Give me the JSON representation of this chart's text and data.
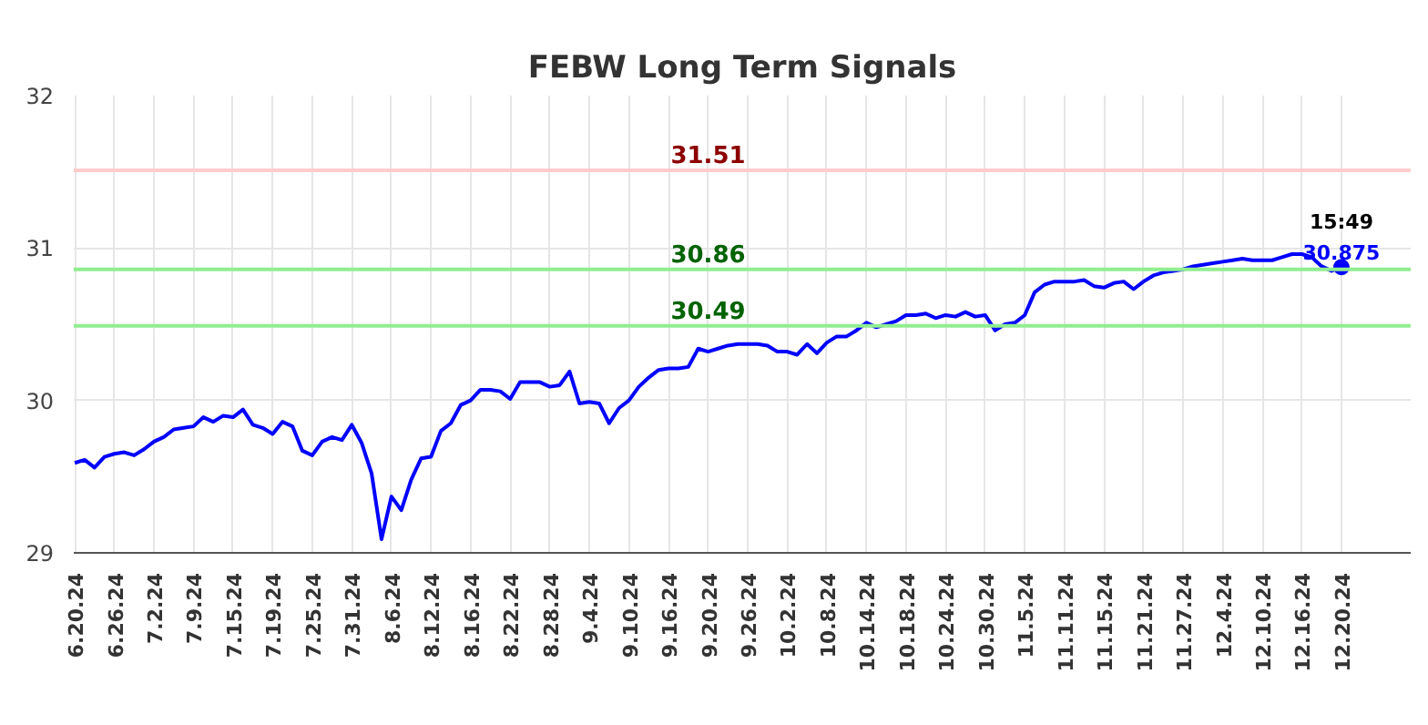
{
  "chart_data": {
    "type": "line",
    "title": "FEBW Long Term Signals",
    "categories": [
      "6.20.24",
      null,
      null,
      null,
      "6.26.24",
      null,
      null,
      null,
      "7.2.24",
      null,
      null,
      null,
      "7.9.24",
      null,
      null,
      null,
      "7.15.24",
      null,
      null,
      null,
      "7.19.24",
      null,
      null,
      null,
      "7.25.24",
      null,
      null,
      null,
      "7.31.24",
      null,
      null,
      null,
      "8.6.24",
      null,
      null,
      null,
      "8.12.24",
      null,
      null,
      null,
      "8.16.24",
      null,
      null,
      null,
      "8.22.24",
      null,
      null,
      null,
      "8.28.24",
      null,
      null,
      null,
      "9.4.24",
      null,
      null,
      null,
      "9.10.24",
      null,
      null,
      null,
      "9.16.24",
      null,
      null,
      null,
      "9.20.24",
      null,
      null,
      null,
      "9.26.24",
      null,
      null,
      null,
      "10.2.24",
      null,
      null,
      null,
      "10.8.24",
      null,
      null,
      null,
      "10.14.24",
      null,
      null,
      null,
      "10.18.24",
      null,
      null,
      null,
      "10.24.24",
      null,
      null,
      null,
      "10.30.24",
      null,
      null,
      null,
      "11.5.24",
      null,
      null,
      null,
      "11.11.24",
      null,
      null,
      null,
      "11.15.24",
      null,
      null,
      null,
      "11.21.24",
      null,
      null,
      null,
      "11.27.24",
      null,
      null,
      null,
      "12.4.24",
      null,
      null,
      null,
      "12.10.24",
      null,
      null,
      null,
      "12.16.24",
      null,
      null,
      null,
      "12.20.24"
    ],
    "series": [
      {
        "color": "#0000ff",
        "values": [
          29.59,
          29.61,
          29.56,
          29.63,
          29.65,
          29.66,
          29.64,
          29.68,
          29.73,
          29.76,
          29.81,
          29.82,
          29.83,
          29.89,
          29.86,
          29.9,
          29.89,
          29.94,
          29.84,
          29.82,
          29.78,
          29.86,
          29.83,
          29.67,
          29.64,
          29.73,
          29.76,
          29.74,
          29.84,
          29.72,
          29.52,
          29.09,
          29.37,
          29.28,
          29.48,
          29.62,
          29.63,
          29.8,
          29.85,
          29.97,
          30.0,
          30.07,
          30.07,
          30.06,
          30.01,
          30.12,
          30.12,
          30.12,
          30.09,
          30.1,
          30.19,
          29.98,
          29.99,
          29.98,
          29.85,
          29.95,
          30.0,
          30.09,
          30.15,
          30.2,
          30.21,
          30.21,
          30.22,
          30.34,
          30.32,
          30.34,
          30.36,
          30.37,
          30.37,
          30.37,
          30.36,
          30.32,
          30.32,
          30.3,
          30.37,
          30.31,
          30.38,
          30.42,
          30.42,
          30.46,
          30.51,
          30.48,
          30.5,
          30.52,
          30.56,
          30.56,
          30.57,
          30.54,
          30.56,
          30.55,
          30.58,
          30.55,
          30.56,
          30.46,
          30.5,
          30.51,
          30.56,
          30.71,
          30.76,
          30.78,
          30.78,
          30.78,
          30.79,
          30.75,
          30.74,
          30.77,
          30.78,
          30.73,
          30.78,
          30.82,
          30.84,
          30.85,
          30.86,
          30.88,
          30.89,
          30.9,
          30.91,
          30.92,
          30.93,
          30.92,
          30.92,
          30.92,
          30.94,
          30.96,
          30.96,
          30.94,
          30.88,
          30.85,
          30.875
        ]
      },
      {
        "type": "scatter",
        "color": "#0000ff",
        "x": [
          "12.20.24"
        ],
        "values": [
          30.875
        ]
      }
    ],
    "ylim": [
      29,
      32
    ],
    "yticks": [
      29,
      30,
      31,
      32
    ],
    "grid": true,
    "line_style": "solid",
    "ref_lines": [
      {
        "axis": "y",
        "value": 31.51,
        "label": "31.51",
        "color": "#ffcccc"
      },
      {
        "axis": "y",
        "value": 30.86,
        "label": "30.86",
        "color": "#90ee90"
      },
      {
        "axis": "y",
        "value": 30.49,
        "label": "30.49",
        "color": "#90ee90"
      }
    ],
    "annotations": [
      "15:49",
      {
        "text": "30.875",
        "x": "12.20.24",
        "y": 30.875
      }
    ]
  }
}
